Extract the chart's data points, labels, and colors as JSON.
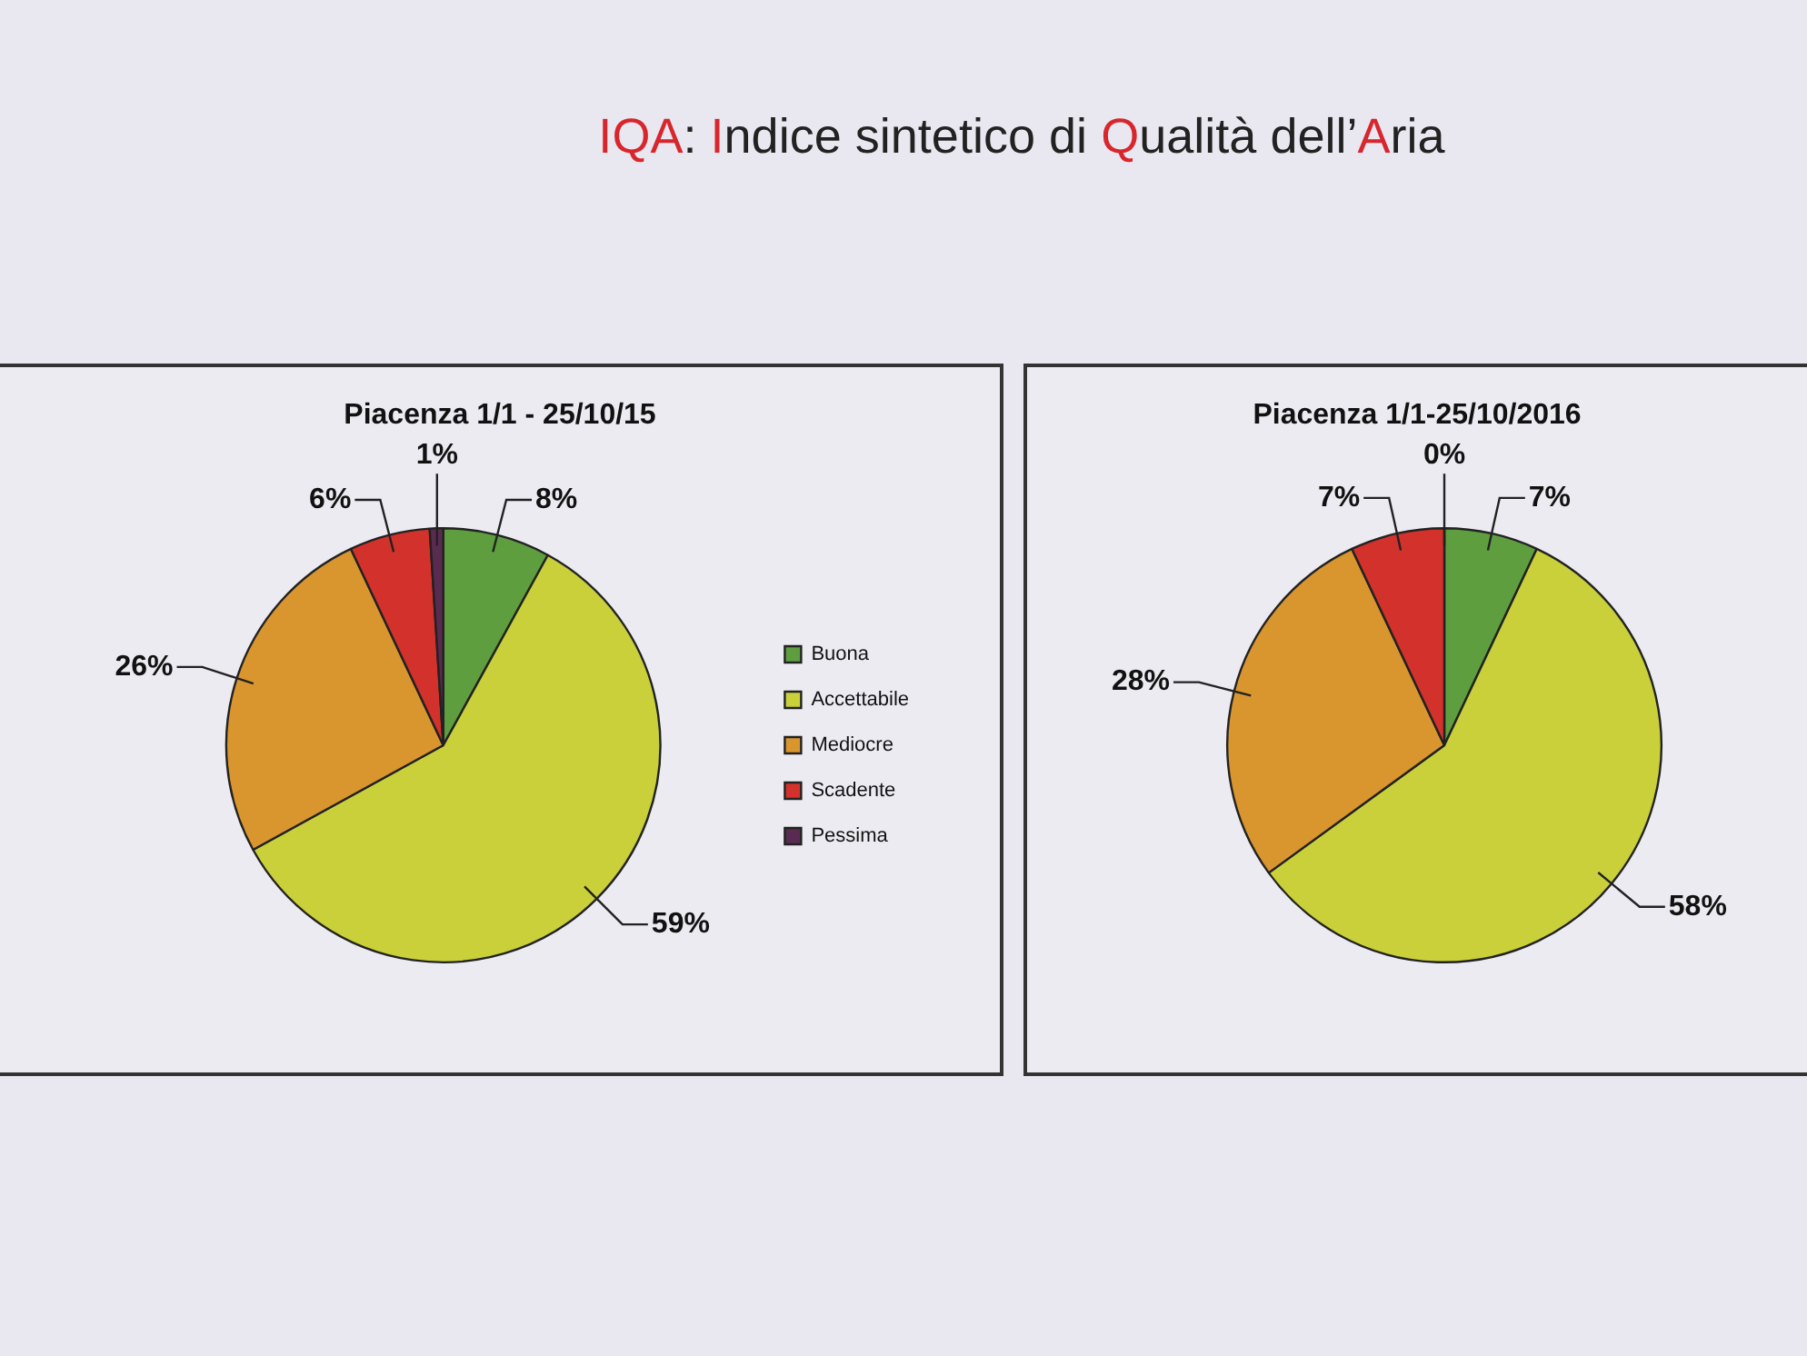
{
  "chart_data": [
    {
      "type": "other",
      "title": "IQA: Indice sintetico di Qualità dell’Aria"
    },
    {
      "type": "pie",
      "title": "Piacenza 1/1 - 25/10/15",
      "categories": [
        "Buona",
        "Accettabile",
        "Mediocre",
        "Scadente",
        "Pessima"
      ],
      "values": [
        8,
        59,
        26,
        6,
        1
      ],
      "value_labels": [
        "8%",
        "59%",
        "26%",
        "6%",
        "1%"
      ],
      "colors": [
        "#5e9e3f",
        "#c9d03a",
        "#d9952e",
        "#d2322b",
        "#5a2b50"
      ],
      "legend": "right"
    },
    {
      "type": "pie",
      "title": "Piacenza 1/1-25/10/2016",
      "values": [
        7,
        58,
        28,
        7,
        0
      ],
      "value_labels": [
        "7%",
        "58%",
        "28%",
        "7%",
        "0%"
      ],
      "colors": [
        "#5e9e3f",
        "#c9d03a",
        "#d9952e",
        "#d2322b",
        "#5a2b50"
      ]
    }
  ]
}
